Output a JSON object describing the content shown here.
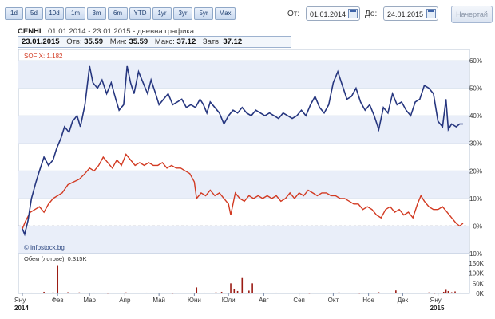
{
  "range_buttons": [
    "1d",
    "5d",
    "10d",
    "1m",
    "3m",
    "6m",
    "YTD",
    "1yr",
    "3yr",
    "5yr",
    "Max"
  ],
  "from": {
    "label": "От:",
    "value": "01.01.2014"
  },
  "to": {
    "label": "До:",
    "value": "24.01.2015"
  },
  "draw_button": "Начертай",
  "title": {
    "symbol": "CENHL",
    "rest": ": 01.01.2014 - 23.01.2015 - дневна графика"
  },
  "quote": {
    "date": "23.01.2015",
    "open_label": "Отв:",
    "open": "35.59",
    "min_label": "Мин:",
    "min": "35.59",
    "max_label": "Макс:",
    "max": "37.12",
    "close_label": "Затв:",
    "close": "37.12"
  },
  "colors": {
    "stock": "#26367f",
    "index": "#d23a22",
    "volume": "#9b1c14",
    "band": "#e9eef9"
  },
  "chart_data": {
    "type": "line",
    "sofix_label": "SOFIX: 1.182",
    "watermark": "© infostock.bg",
    "y_axis_label": "",
    "yticks": [
      "60%",
      "50%",
      "40%",
      "30%",
      "20%",
      "10%",
      "0%",
      "-10%"
    ],
    "ylim": [
      -10,
      60
    ],
    "x_start": "2014-01-01",
    "x_end": "2015-01-23",
    "x_ticks": [
      {
        "label": "Яну",
        "date": "2014-01-01",
        "year": "2014"
      },
      {
        "label": "Фев",
        "date": "2014-02-01"
      },
      {
        "label": "Мар",
        "date": "2014-03-01"
      },
      {
        "label": "Апр",
        "date": "2014-04-01"
      },
      {
        "label": "Май",
        "date": "2014-05-01"
      },
      {
        "label": "Юни",
        "date": "2014-06-01"
      },
      {
        "label": "Юли",
        "date": "2014-07-01"
      },
      {
        "label": "Авг",
        "date": "2014-08-01"
      },
      {
        "label": "Сеп",
        "date": "2014-09-01"
      },
      {
        "label": "Окт",
        "date": "2014-10-01"
      },
      {
        "label": "Ное",
        "date": "2014-11-01"
      },
      {
        "label": "Дек",
        "date": "2014-12-01"
      },
      {
        "label": "Яну",
        "date": "2015-01-01",
        "year": "2015"
      }
    ],
    "series": [
      {
        "name": "CENHL",
        "points": [
          [
            "2014-01-01",
            -1
          ],
          [
            "2014-01-03",
            -3
          ],
          [
            "2014-01-06",
            2
          ],
          [
            "2014-01-09",
            10
          ],
          [
            "2014-01-13",
            16
          ],
          [
            "2014-01-16",
            20
          ],
          [
            "2014-01-20",
            25
          ],
          [
            "2014-01-24",
            22
          ],
          [
            "2014-01-28",
            24
          ],
          [
            "2014-01-31",
            28
          ],
          [
            "2014-02-04",
            32
          ],
          [
            "2014-02-07",
            36
          ],
          [
            "2014-02-11",
            34
          ],
          [
            "2014-02-14",
            38
          ],
          [
            "2014-02-18",
            40
          ],
          [
            "2014-02-21",
            36
          ],
          [
            "2014-02-25",
            44
          ],
          [
            "2014-03-01",
            58
          ],
          [
            "2014-03-04",
            52
          ],
          [
            "2014-03-08",
            50
          ],
          [
            "2014-03-12",
            53
          ],
          [
            "2014-03-16",
            48
          ],
          [
            "2014-03-20",
            52
          ],
          [
            "2014-03-24",
            46
          ],
          [
            "2014-03-27",
            42
          ],
          [
            "2014-03-31",
            44
          ],
          [
            "2014-04-03",
            58
          ],
          [
            "2014-04-06",
            52
          ],
          [
            "2014-04-09",
            48
          ],
          [
            "2014-04-13",
            56
          ],
          [
            "2014-04-17",
            52
          ],
          [
            "2014-04-21",
            48
          ],
          [
            "2014-04-24",
            53
          ],
          [
            "2014-04-28",
            48
          ],
          [
            "2014-05-01",
            44
          ],
          [
            "2014-05-05",
            46
          ],
          [
            "2014-05-09",
            48
          ],
          [
            "2014-05-13",
            44
          ],
          [
            "2014-05-17",
            45
          ],
          [
            "2014-05-21",
            46
          ],
          [
            "2014-05-25",
            43
          ],
          [
            "2014-05-29",
            44
          ],
          [
            "2014-06-02",
            43
          ],
          [
            "2014-06-06",
            46
          ],
          [
            "2014-06-09",
            44
          ],
          [
            "2014-06-12",
            41
          ],
          [
            "2014-06-15",
            45
          ],
          [
            "2014-06-19",
            43
          ],
          [
            "2014-06-23",
            41
          ],
          [
            "2014-06-27",
            37
          ],
          [
            "2014-07-01",
            40
          ],
          [
            "2014-07-05",
            42
          ],
          [
            "2014-07-09",
            41
          ],
          [
            "2014-07-13",
            43
          ],
          [
            "2014-07-17",
            41
          ],
          [
            "2014-07-21",
            40
          ],
          [
            "2014-07-25",
            42
          ],
          [
            "2014-07-29",
            41
          ],
          [
            "2014-08-02",
            40
          ],
          [
            "2014-08-06",
            41
          ],
          [
            "2014-08-10",
            40
          ],
          [
            "2014-08-14",
            39
          ],
          [
            "2014-08-18",
            41
          ],
          [
            "2014-08-22",
            40
          ],
          [
            "2014-08-26",
            39
          ],
          [
            "2014-08-30",
            40
          ],
          [
            "2014-09-03",
            42
          ],
          [
            "2014-09-07",
            40
          ],
          [
            "2014-09-11",
            44
          ],
          [
            "2014-09-15",
            47
          ],
          [
            "2014-09-19",
            43
          ],
          [
            "2014-09-23",
            41
          ],
          [
            "2014-09-27",
            44
          ],
          [
            "2014-10-01",
            52
          ],
          [
            "2014-10-05",
            56
          ],
          [
            "2014-10-09",
            51
          ],
          [
            "2014-10-13",
            46
          ],
          [
            "2014-10-17",
            47
          ],
          [
            "2014-10-21",
            50
          ],
          [
            "2014-10-25",
            45
          ],
          [
            "2014-10-29",
            42
          ],
          [
            "2014-11-02",
            44
          ],
          [
            "2014-11-06",
            40
          ],
          [
            "2014-11-10",
            35
          ],
          [
            "2014-11-14",
            43
          ],
          [
            "2014-11-18",
            41
          ],
          [
            "2014-11-22",
            48
          ],
          [
            "2014-11-26",
            44
          ],
          [
            "2014-11-30",
            45
          ],
          [
            "2014-12-04",
            42
          ],
          [
            "2014-12-08",
            40
          ],
          [
            "2014-12-12",
            45
          ],
          [
            "2014-12-16",
            46
          ],
          [
            "2014-12-20",
            51
          ],
          [
            "2014-12-24",
            50
          ],
          [
            "2014-12-28",
            48
          ],
          [
            "2015-01-01",
            38
          ],
          [
            "2015-01-05",
            36
          ],
          [
            "2015-01-08",
            46
          ],
          [
            "2015-01-10",
            35
          ],
          [
            "2015-01-13",
            37
          ],
          [
            "2015-01-17",
            36
          ],
          [
            "2015-01-20",
            37
          ],
          [
            "2015-01-23",
            37
          ]
        ]
      },
      {
        "name": "SOFIX",
        "points": [
          [
            "2014-01-01",
            -1
          ],
          [
            "2014-01-04",
            2
          ],
          [
            "2014-01-08",
            5
          ],
          [
            "2014-01-12",
            6
          ],
          [
            "2014-01-16",
            7
          ],
          [
            "2014-01-20",
            5
          ],
          [
            "2014-01-24",
            8
          ],
          [
            "2014-01-28",
            10
          ],
          [
            "2014-02-01",
            11
          ],
          [
            "2014-02-05",
            12
          ],
          [
            "2014-02-10",
            15
          ],
          [
            "2014-02-15",
            16
          ],
          [
            "2014-02-20",
            17
          ],
          [
            "2014-02-25",
            19
          ],
          [
            "2014-03-01",
            21
          ],
          [
            "2014-03-05",
            20
          ],
          [
            "2014-03-09",
            22
          ],
          [
            "2014-03-13",
            25
          ],
          [
            "2014-03-17",
            23
          ],
          [
            "2014-03-21",
            21
          ],
          [
            "2014-03-25",
            24
          ],
          [
            "2014-03-29",
            22
          ],
          [
            "2014-04-02",
            26
          ],
          [
            "2014-04-06",
            24
          ],
          [
            "2014-04-10",
            22
          ],
          [
            "2014-04-14",
            23
          ],
          [
            "2014-04-18",
            22
          ],
          [
            "2014-04-22",
            23
          ],
          [
            "2014-04-26",
            22
          ],
          [
            "2014-04-30",
            22
          ],
          [
            "2014-05-04",
            23
          ],
          [
            "2014-05-08",
            21
          ],
          [
            "2014-05-12",
            22
          ],
          [
            "2014-05-16",
            21
          ],
          [
            "2014-05-20",
            21
          ],
          [
            "2014-05-24",
            20
          ],
          [
            "2014-05-28",
            19
          ],
          [
            "2014-06-01",
            16
          ],
          [
            "2014-06-03",
            10
          ],
          [
            "2014-06-07",
            12
          ],
          [
            "2014-06-11",
            11
          ],
          [
            "2014-06-15",
            13
          ],
          [
            "2014-06-19",
            11
          ],
          [
            "2014-06-23",
            12
          ],
          [
            "2014-06-27",
            10
          ],
          [
            "2014-07-01",
            8
          ],
          [
            "2014-07-03",
            4
          ],
          [
            "2014-07-07",
            12
          ],
          [
            "2014-07-11",
            10
          ],
          [
            "2014-07-15",
            9
          ],
          [
            "2014-07-19",
            11
          ],
          [
            "2014-07-23",
            10
          ],
          [
            "2014-07-27",
            11
          ],
          [
            "2014-07-31",
            10
          ],
          [
            "2014-08-04",
            11
          ],
          [
            "2014-08-08",
            10
          ],
          [
            "2014-08-12",
            11
          ],
          [
            "2014-08-16",
            9
          ],
          [
            "2014-08-20",
            10
          ],
          [
            "2014-08-24",
            12
          ],
          [
            "2014-08-28",
            10
          ],
          [
            "2014-09-01",
            12
          ],
          [
            "2014-09-05",
            11
          ],
          [
            "2014-09-09",
            13
          ],
          [
            "2014-09-13",
            12
          ],
          [
            "2014-09-17",
            11
          ],
          [
            "2014-09-21",
            12
          ],
          [
            "2014-09-25",
            12
          ],
          [
            "2014-09-29",
            11
          ],
          [
            "2014-10-03",
            11
          ],
          [
            "2014-10-07",
            10
          ],
          [
            "2014-10-11",
            10
          ],
          [
            "2014-10-15",
            9
          ],
          [
            "2014-10-19",
            8
          ],
          [
            "2014-10-23",
            8
          ],
          [
            "2014-10-27",
            6
          ],
          [
            "2014-10-31",
            7
          ],
          [
            "2014-11-04",
            6
          ],
          [
            "2014-11-08",
            4
          ],
          [
            "2014-11-12",
            3
          ],
          [
            "2014-11-16",
            6
          ],
          [
            "2014-11-20",
            7
          ],
          [
            "2014-11-24",
            5
          ],
          [
            "2014-11-28",
            6
          ],
          [
            "2014-12-02",
            4
          ],
          [
            "2014-12-06",
            5
          ],
          [
            "2014-12-10",
            3
          ],
          [
            "2014-12-14",
            8
          ],
          [
            "2014-12-17",
            11
          ],
          [
            "2014-12-20",
            9
          ],
          [
            "2014-12-24",
            7
          ],
          [
            "2014-12-28",
            6
          ],
          [
            "2015-01-01",
            6
          ],
          [
            "2015-01-05",
            7
          ],
          [
            "2015-01-09",
            5
          ],
          [
            "2015-01-13",
            3
          ],
          [
            "2015-01-17",
            1
          ],
          [
            "2015-01-20",
            0
          ],
          [
            "2015-01-23",
            1
          ]
        ]
      }
    ],
    "volume": {
      "label": "Обем (лотове): 0.315K",
      "yticks": [
        "150K",
        "100K",
        "50K",
        "0K"
      ],
      "ylim": [
        0,
        150
      ],
      "bars": [
        [
          "2014-01-09",
          4
        ],
        [
          "2014-01-20",
          8
        ],
        [
          "2014-01-28",
          5
        ],
        [
          "2014-02-01",
          140
        ],
        [
          "2014-02-10",
          6
        ],
        [
          "2014-02-20",
          5
        ],
        [
          "2014-03-05",
          4
        ],
        [
          "2014-03-17",
          3
        ],
        [
          "2014-04-02",
          5
        ],
        [
          "2014-04-20",
          4
        ],
        [
          "2014-05-13",
          3
        ],
        [
          "2014-06-03",
          30
        ],
        [
          "2014-06-10",
          4
        ],
        [
          "2014-06-20",
          6
        ],
        [
          "2014-06-25",
          8
        ],
        [
          "2014-07-03",
          50
        ],
        [
          "2014-07-06",
          20
        ],
        [
          "2014-07-09",
          12
        ],
        [
          "2014-07-13",
          80
        ],
        [
          "2014-07-19",
          14
        ],
        [
          "2014-07-22",
          50
        ],
        [
          "2014-08-12",
          4
        ],
        [
          "2014-09-10",
          3
        ],
        [
          "2014-10-06",
          5
        ],
        [
          "2014-10-24",
          3
        ],
        [
          "2014-11-10",
          6
        ],
        [
          "2014-11-25",
          15
        ],
        [
          "2014-12-05",
          4
        ],
        [
          "2014-12-24",
          5
        ],
        [
          "2014-12-29",
          3
        ],
        [
          "2015-01-06",
          8
        ],
        [
          "2015-01-08",
          18
        ],
        [
          "2015-01-10",
          12
        ],
        [
          "2015-01-13",
          6
        ],
        [
          "2015-01-16",
          10
        ],
        [
          "2015-01-20",
          4
        ]
      ]
    }
  }
}
